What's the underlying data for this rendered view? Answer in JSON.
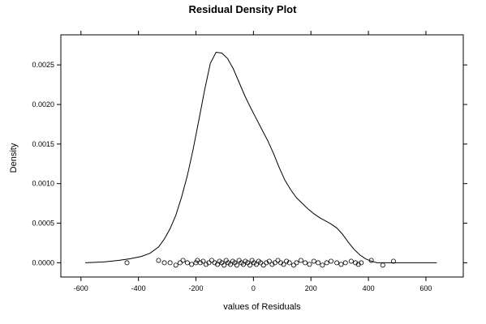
{
  "chart_data": {
    "type": "line",
    "title": "Residual Density Plot",
    "xlabel": "values of Residuals",
    "ylabel": "Density",
    "xlim": [
      -670,
      730
    ],
    "ylim": [
      -0.00018,
      0.00288
    ],
    "x_ticks": [
      -600,
      -400,
      -200,
      0,
      200,
      400,
      600
    ],
    "x_tick_labels": [
      "-600",
      "-400",
      "-200",
      "0",
      "200",
      "400",
      "600"
    ],
    "y_ticks": [
      0,
      0.0005,
      0.001,
      0.0015,
      0.002,
      0.0025
    ],
    "y_tick_labels": [
      "0.0000",
      "0.0005",
      "0.0010",
      "0.0015",
      "0.0020",
      "0.0025"
    ],
    "grid": false,
    "colors": {
      "line": "#000000",
      "frame": "#000000",
      "background": "#ffffff"
    },
    "series": [
      {
        "x": [
          -585,
          -520,
          -470,
          -430,
          -390,
          -360,
          -330,
          -310,
          -290,
          -270,
          -250,
          -230,
          -210,
          -190,
          -170,
          -150,
          -130,
          -110,
          -90,
          -70,
          -50,
          -30,
          -10,
          10,
          30,
          50,
          70,
          90,
          110,
          130,
          150,
          170,
          190,
          210,
          230,
          250,
          270,
          290,
          310,
          330,
          350,
          370,
          390,
          410,
          430,
          450,
          470,
          500,
          530,
          560,
          600,
          638
        ],
        "y": [
          0.0,
          1e-05,
          3e-05,
          5e-05,
          8e-05,
          0.00012,
          0.0002,
          0.0003,
          0.00043,
          0.0006,
          0.00083,
          0.0011,
          0.00143,
          0.0018,
          0.00218,
          0.00252,
          0.00266,
          0.00265,
          0.00258,
          0.00245,
          0.00228,
          0.00211,
          0.00196,
          0.00182,
          0.00168,
          0.00154,
          0.00138,
          0.0012,
          0.00104,
          0.00092,
          0.00082,
          0.00075,
          0.00068,
          0.00062,
          0.00057,
          0.00053,
          0.00049,
          0.00044,
          0.00036,
          0.00026,
          0.00017,
          0.0001,
          5e-05,
          2e-05,
          0.0,
          0.0,
          0.0,
          0.0,
          0.0,
          0.0,
          0.0,
          0.0
        ]
      }
    ],
    "rug_points": [
      {
        "x": -440,
        "y": 0.0
      },
      {
        "x": -330,
        "y": 3e-05
      },
      {
        "x": -310,
        "y": 0.0
      },
      {
        "x": -290,
        "y": 0.0
      },
      {
        "x": -270,
        "y": -3e-05
      },
      {
        "x": -255,
        "y": 0.0
      },
      {
        "x": -245,
        "y": 3e-05
      },
      {
        "x": -230,
        "y": 0.0
      },
      {
        "x": -215,
        "y": -2e-05
      },
      {
        "x": -200,
        "y": 0.0
      },
      {
        "x": -195,
        "y": 3e-05
      },
      {
        "x": -185,
        "y": 0.0
      },
      {
        "x": -175,
        "y": 2e-05
      },
      {
        "x": -165,
        "y": -2e-05
      },
      {
        "x": -155,
        "y": 0.0
      },
      {
        "x": -145,
        "y": 3e-05
      },
      {
        "x": -135,
        "y": 0.0
      },
      {
        "x": -125,
        "y": -2e-05
      },
      {
        "x": -118,
        "y": 2e-05
      },
      {
        "x": -110,
        "y": 0.0
      },
      {
        "x": -102,
        "y": -3e-05
      },
      {
        "x": -95,
        "y": 3e-05
      },
      {
        "x": -88,
        "y": 0.0
      },
      {
        "x": -80,
        "y": -2e-05
      },
      {
        "x": -72,
        "y": 2e-05
      },
      {
        "x": -65,
        "y": 0.0
      },
      {
        "x": -58,
        "y": -3e-05
      },
      {
        "x": -50,
        "y": 3e-05
      },
      {
        "x": -42,
        "y": 0.0
      },
      {
        "x": -35,
        "y": -2e-05
      },
      {
        "x": -28,
        "y": 2e-05
      },
      {
        "x": -20,
        "y": 0.0
      },
      {
        "x": -12,
        "y": -3e-05
      },
      {
        "x": -5,
        "y": 3e-05
      },
      {
        "x": 2,
        "y": 0.0
      },
      {
        "x": 10,
        "y": -2e-05
      },
      {
        "x": 18,
        "y": 2e-05
      },
      {
        "x": 25,
        "y": 0.0
      },
      {
        "x": 35,
        "y": -3e-05
      },
      {
        "x": 45,
        "y": 0.0
      },
      {
        "x": 55,
        "y": 2e-05
      },
      {
        "x": 65,
        "y": -2e-05
      },
      {
        "x": 75,
        "y": 0.0
      },
      {
        "x": 85,
        "y": 3e-05
      },
      {
        "x": 95,
        "y": 0.0
      },
      {
        "x": 105,
        "y": -2e-05
      },
      {
        "x": 115,
        "y": 2e-05
      },
      {
        "x": 125,
        "y": 0.0
      },
      {
        "x": 140,
        "y": -3e-05
      },
      {
        "x": 150,
        "y": 0.0
      },
      {
        "x": 165,
        "y": 3e-05
      },
      {
        "x": 180,
        "y": 0.0
      },
      {
        "x": 195,
        "y": -2e-05
      },
      {
        "x": 210,
        "y": 2e-05
      },
      {
        "x": 225,
        "y": 0.0
      },
      {
        "x": 240,
        "y": -3e-05
      },
      {
        "x": 255,
        "y": 0.0
      },
      {
        "x": 270,
        "y": 2e-05
      },
      {
        "x": 290,
        "y": 0.0
      },
      {
        "x": 305,
        "y": -2e-05
      },
      {
        "x": 320,
        "y": 0.0
      },
      {
        "x": 340,
        "y": 2e-05
      },
      {
        "x": 355,
        "y": 0.0
      },
      {
        "x": 365,
        "y": -2e-05
      },
      {
        "x": 375,
        "y": 0.0
      },
      {
        "x": 410,
        "y": 3e-05
      },
      {
        "x": 450,
        "y": -3e-05
      },
      {
        "x": 487,
        "y": 2e-05
      }
    ]
  }
}
